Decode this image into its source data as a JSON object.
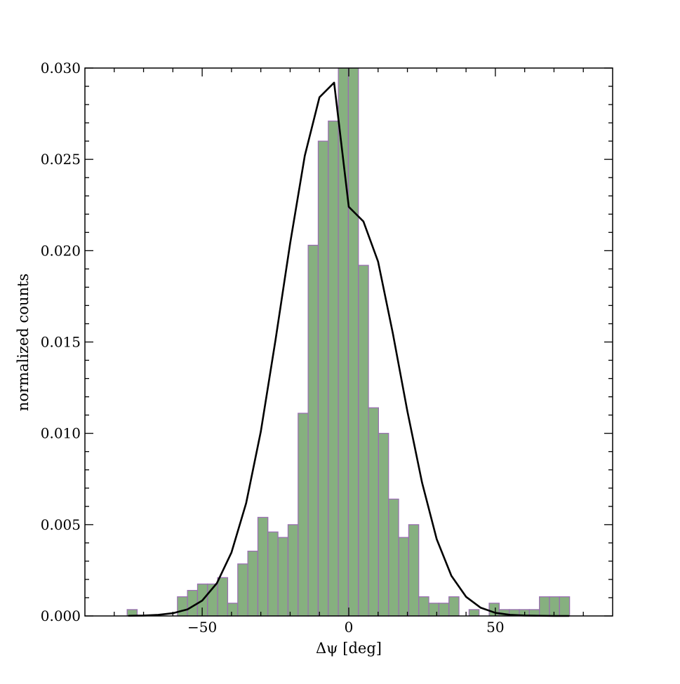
{
  "chart_data": {
    "type": "bar",
    "title": "",
    "xlabel": "Δψ [deg]",
    "ylabel": "normalized counts",
    "xlim": [
      -90,
      90
    ],
    "ylim": [
      0,
      0.03
    ],
    "grid": false,
    "bar_color": "#86b07f",
    "bar_edge_color": "#9a6bb3",
    "curve_color": "#000000",
    "x_ticks": [
      {
        "value": -50,
        "label": "−50"
      },
      {
        "value": 0,
        "label": "0"
      },
      {
        "value": 50,
        "label": "50"
      }
    ],
    "y_ticks": [
      {
        "value": 0.0,
        "label": "0.000"
      },
      {
        "value": 0.005,
        "label": "0.005"
      },
      {
        "value": 0.01,
        "label": "0.010"
      },
      {
        "value": 0.015,
        "label": "0.015"
      },
      {
        "value": 0.02,
        "label": "0.020"
      },
      {
        "value": 0.025,
        "label": "0.025"
      },
      {
        "value": 0.03,
        "label": "0.030"
      }
    ],
    "histogram": {
      "bin_start": -75.6,
      "bin_width": 3.43,
      "values": [
        0.00035,
        0.0,
        0.0,
        0.0,
        0.0,
        0.00105,
        0.0014,
        0.00175,
        0.00175,
        0.0021,
        0.0007,
        0.00285,
        0.00355,
        0.0054,
        0.0046,
        0.0043,
        0.005,
        0.0111,
        0.0203,
        0.026,
        0.0271,
        0.03,
        0.03,
        0.0192,
        0.0114,
        0.01,
        0.0064,
        0.0043,
        0.005,
        0.00105,
        0.0007,
        0.0007,
        0.00105,
        0.0,
        0.00035,
        0.0,
        0.0007,
        0.00035,
        0.00035,
        0.00035,
        0.00035,
        0.00105,
        0.00105,
        0.00105
      ]
    },
    "series": [
      {
        "type": "line",
        "x": [
          -75,
          -70,
          -65,
          -60,
          -55,
          -50,
          -45,
          -40,
          -35,
          -30,
          -25,
          -20,
          -15,
          -10,
          -5,
          0,
          5,
          10,
          15,
          20,
          25,
          30,
          35,
          40,
          45,
          50,
          55,
          60,
          65,
          70,
          75
        ],
        "y": [
          1e-05,
          2e-05,
          6e-05,
          0.00015,
          0.00036,
          0.00084,
          0.00179,
          0.00348,
          0.00618,
          0.0101,
          0.0151,
          0.0204,
          0.0252,
          0.0284,
          0.0292,
          0.0224,
          0.0216,
          0.0194,
          0.0155,
          0.0112,
          0.0073,
          0.0042,
          0.0022,
          0.00105,
          0.00045,
          0.00017,
          6e-05,
          2e-05,
          1e-05,
          0.0,
          0.0
        ]
      }
    ]
  }
}
